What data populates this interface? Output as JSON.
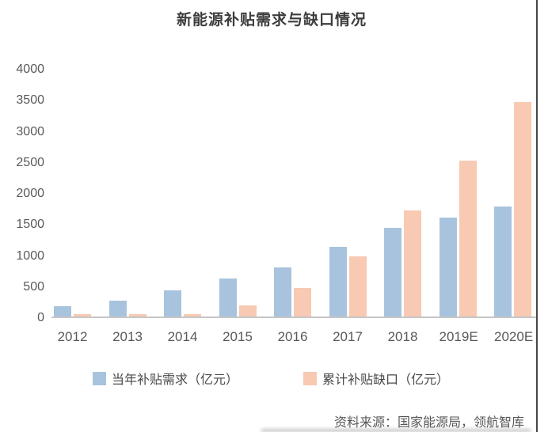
{
  "title": "新能源补贴需求与缺口情况",
  "source_note": "资料来源：国家能源局，领航智库",
  "colors": {
    "demand_bar": "#a8c3dd",
    "gap_bar": "#f8c9b3",
    "axis_line": "#c6c6c6",
    "tick_text": "#595959",
    "title_text": "#3d3d3d",
    "frame_border": "#474747"
  },
  "chart_data": {
    "type": "bar",
    "title": "新能源补贴需求与缺口情况",
    "categories": [
      "2012",
      "2013",
      "2014",
      "2015",
      "2016",
      "2017",
      "2018",
      "2019E",
      "2020E"
    ],
    "series": [
      {
        "name": "当年补贴需求（亿元）",
        "color": "#a8c3dd",
        "values": [
          170,
          260,
          420,
          610,
          790,
          1130,
          1430,
          1600,
          1780
        ]
      },
      {
        "name": "累计补贴缺口（亿元）",
        "color": "#f8c9b3",
        "values": [
          40,
          45,
          40,
          180,
          460,
          970,
          1720,
          2520,
          3470
        ]
      }
    ],
    "xlabel": "",
    "ylabel": "",
    "ylim": [
      0,
      4000
    ],
    "yticks": [
      0,
      500,
      1000,
      1500,
      2000,
      2500,
      3000,
      3500,
      4000
    ],
    "grid": false,
    "legend_position": "bottom"
  }
}
